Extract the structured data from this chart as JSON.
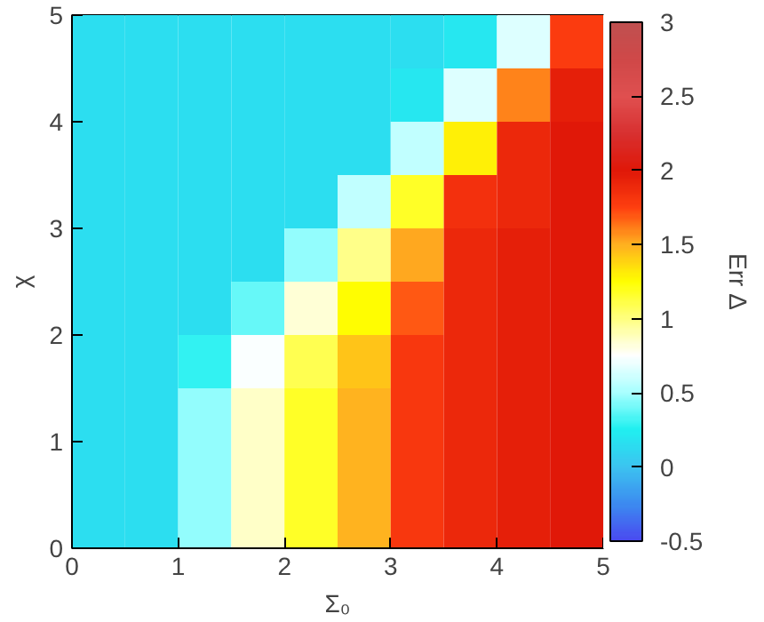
{
  "chart_data": {
    "type": "heatmap",
    "xlabel": "Σ₀",
    "ylabel": "χ",
    "clabel": "Err Δ",
    "x": [
      0.25,
      0.75,
      1.25,
      1.75,
      2.25,
      2.75,
      3.25,
      3.75,
      4.25,
      4.75
    ],
    "y": [
      4.75,
      4.25,
      3.75,
      3.25,
      2.75,
      2.25,
      1.75,
      1.25,
      0.75,
      0.25
    ],
    "cells": [
      [
        0.15,
        0.15,
        0.15,
        0.15,
        0.15,
        0.15,
        0.15,
        0.2,
        0.65,
        1.78
      ],
      [
        0.15,
        0.15,
        0.15,
        0.15,
        0.15,
        0.15,
        0.2,
        0.65,
        1.6,
        1.95
      ],
      [
        0.15,
        0.15,
        0.15,
        0.15,
        0.15,
        0.15,
        0.57,
        1.3,
        1.9,
        2.0
      ],
      [
        0.15,
        0.15,
        0.15,
        0.15,
        0.15,
        0.57,
        1.17,
        1.84,
        1.9,
        2.0
      ],
      [
        0.15,
        0.15,
        0.15,
        0.15,
        0.47,
        0.98,
        1.52,
        1.9,
        1.95,
        2.0
      ],
      [
        0.15,
        0.15,
        0.15,
        0.38,
        0.83,
        1.25,
        1.69,
        1.9,
        1.95,
        2.0
      ],
      [
        0.15,
        0.15,
        0.29,
        0.74,
        1.09,
        1.44,
        1.8,
        1.9,
        1.95,
        2.0
      ],
      [
        0.15,
        0.15,
        0.47,
        0.86,
        1.17,
        1.49,
        1.81,
        1.9,
        1.95,
        2.0
      ],
      [
        0.15,
        0.15,
        0.47,
        0.86,
        1.17,
        1.49,
        1.81,
        1.9,
        1.95,
        2.0
      ],
      [
        0.15,
        0.15,
        0.47,
        0.86,
        1.17,
        1.49,
        1.81,
        1.9,
        1.95,
        2.0
      ]
    ],
    "colors": [
      "#4a4af0",
      "#3c8cf0",
      "#3cc4f0",
      "#20f0f0",
      "#a8ffff",
      "#ffffff",
      "#ffff80",
      "#ffff00",
      "#ffb020",
      "#ff4010",
      "#e01808",
      "#d83030",
      "#e05050",
      "#d04848",
      "#c05050"
    ],
    "xlim": [
      0,
      5
    ],
    "xticks": [
      0,
      1,
      2,
      3,
      4,
      5
    ],
    "ylim": [
      0,
      5
    ],
    "yticks": [
      0,
      1,
      2,
      3,
      4,
      5
    ],
    "clim": [
      -0.5,
      3
    ],
    "cticks": [
      -0.5,
      0,
      0.5,
      1,
      1.5,
      2,
      2.5,
      3
    ],
    "grid": false
  }
}
